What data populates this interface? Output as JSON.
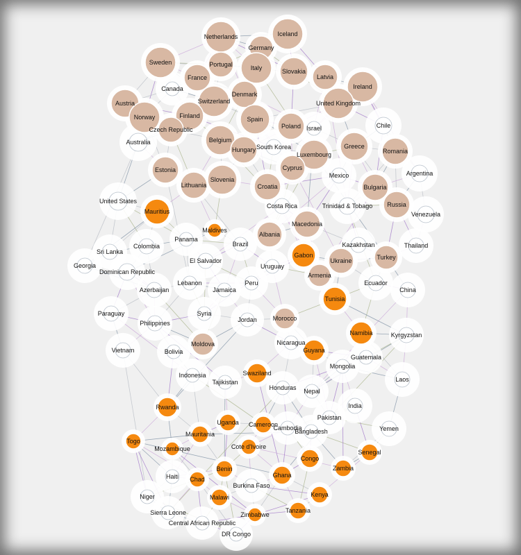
{
  "colors": {
    "background": "#f0f0f0",
    "node_tan": "#d8b8a3",
    "node_orange": "#f5890f",
    "node_white": "#ffffff",
    "halo": "#ffffff",
    "edge_palette": [
      "#9b6fc6",
      "#a8b38a",
      "#7c8fa3",
      "#c9a6d8",
      "#b7bcc4"
    ]
  },
  "nodes": [
    {
      "label": "Netherlands",
      "group": "tan"
    },
    {
      "label": "Iceland",
      "group": "tan"
    },
    {
      "label": "Germany",
      "group": "tan"
    },
    {
      "label": "Sweden",
      "group": "tan"
    },
    {
      "label": "Portugal",
      "group": "tan"
    },
    {
      "label": "Italy",
      "group": "tan"
    },
    {
      "label": "France",
      "group": "tan"
    },
    {
      "label": "Slovakia",
      "group": "tan"
    },
    {
      "label": "Latvia",
      "group": "tan"
    },
    {
      "label": "Ireland",
      "group": "tan"
    },
    {
      "label": "Canada",
      "group": "white"
    },
    {
      "label": "Denmark",
      "group": "tan"
    },
    {
      "label": "Austria",
      "group": "tan"
    },
    {
      "label": "Switzerland",
      "group": "tan"
    },
    {
      "label": "United Kingdom",
      "group": "tan"
    },
    {
      "label": "Norway",
      "group": "tan"
    },
    {
      "label": "Finland",
      "group": "tan"
    },
    {
      "label": "Spain",
      "group": "tan"
    },
    {
      "label": "Chile",
      "group": "white"
    },
    {
      "label": "Czech Republic",
      "group": "tan"
    },
    {
      "label": "Poland",
      "group": "tan"
    },
    {
      "label": "Israel",
      "group": "white"
    },
    {
      "label": "Australia",
      "group": "white"
    },
    {
      "label": "Belgium",
      "group": "tan"
    },
    {
      "label": "South Korea",
      "group": "white"
    },
    {
      "label": "Hungary",
      "group": "tan"
    },
    {
      "label": "Luxembourg",
      "group": "tan"
    },
    {
      "label": "Greece",
      "group": "tan"
    },
    {
      "label": "Romania",
      "group": "tan"
    },
    {
      "label": "Estonia",
      "group": "tan"
    },
    {
      "label": "Cyprus",
      "group": "tan"
    },
    {
      "label": "Argentina",
      "group": "white"
    },
    {
      "label": "Mexico",
      "group": "white"
    },
    {
      "label": "Slovenia",
      "group": "tan"
    },
    {
      "label": "Lithuania",
      "group": "tan"
    },
    {
      "label": "Croatia",
      "group": "tan"
    },
    {
      "label": "Bulgaria",
      "group": "tan"
    },
    {
      "label": "United States",
      "group": "white"
    },
    {
      "label": "Costa Rica",
      "group": "white"
    },
    {
      "label": "Trinidad & Tobago",
      "group": "white"
    },
    {
      "label": "Russia",
      "group": "tan"
    },
    {
      "label": "Venezuela",
      "group": "white"
    },
    {
      "label": "Mauritius",
      "group": "orange"
    },
    {
      "label": "Macedonia",
      "group": "tan"
    },
    {
      "label": "Maldives",
      "group": "orange"
    },
    {
      "label": "Albania",
      "group": "tan"
    },
    {
      "label": "Panama",
      "group": "white"
    },
    {
      "label": "Colombia",
      "group": "white"
    },
    {
      "label": "Brazil",
      "group": "white"
    },
    {
      "label": "Kazakhstan",
      "group": "white"
    },
    {
      "label": "Thailand",
      "group": "white"
    },
    {
      "label": "Sri Lanka",
      "group": "white"
    },
    {
      "label": "Gabon",
      "group": "orange"
    },
    {
      "label": "Turkey",
      "group": "tan"
    },
    {
      "label": "Ukraine",
      "group": "tan"
    },
    {
      "label": "El Salvador",
      "group": "white"
    },
    {
      "label": "Georgia",
      "group": "white"
    },
    {
      "label": "Dominican Republic",
      "group": "white"
    },
    {
      "label": "Uruguay",
      "group": "white"
    },
    {
      "label": "Armenia",
      "group": "tan"
    },
    {
      "label": "Lebanon",
      "group": "white"
    },
    {
      "label": "Azerbaijan",
      "group": "white"
    },
    {
      "label": "Peru",
      "group": "white"
    },
    {
      "label": "Ecuador",
      "group": "white"
    },
    {
      "label": "China",
      "group": "white"
    },
    {
      "label": "Jamaica",
      "group": "white"
    },
    {
      "label": "Tunisia",
      "group": "orange"
    },
    {
      "label": "Paraguay",
      "group": "white"
    },
    {
      "label": "Syria",
      "group": "white"
    },
    {
      "label": "Jordan",
      "group": "white"
    },
    {
      "label": "Morocco",
      "group": "tan"
    },
    {
      "label": "Philippines",
      "group": "white"
    },
    {
      "label": "Namibia",
      "group": "orange"
    },
    {
      "label": "Kyrgyzstan",
      "group": "white"
    },
    {
      "label": "Moldova",
      "group": "tan"
    },
    {
      "label": "Nicaragua",
      "group": "white"
    },
    {
      "label": "Guyana",
      "group": "orange"
    },
    {
      "label": "Vietnam",
      "group": "white"
    },
    {
      "label": "Bolivia",
      "group": "white"
    },
    {
      "label": "Guatemala",
      "group": "white"
    },
    {
      "label": "Mongolia",
      "group": "white"
    },
    {
      "label": "Indonesia",
      "group": "white"
    },
    {
      "label": "Swaziland",
      "group": "orange"
    },
    {
      "label": "Laos",
      "group": "white"
    },
    {
      "label": "Tajikistan",
      "group": "white"
    },
    {
      "label": "Honduras",
      "group": "white"
    },
    {
      "label": "Nepal",
      "group": "white"
    },
    {
      "label": "India",
      "group": "white"
    },
    {
      "label": "Rwanda",
      "group": "orange"
    },
    {
      "label": "Pakistan",
      "group": "white"
    },
    {
      "label": "Uganda",
      "group": "orange"
    },
    {
      "label": "Cameroon",
      "group": "orange"
    },
    {
      "label": "Yemen",
      "group": "white"
    },
    {
      "label": "Cambodia",
      "group": "white"
    },
    {
      "label": "Mauritania",
      "group": "orange"
    },
    {
      "label": "Bangladesh",
      "group": "white"
    },
    {
      "label": "Togo",
      "group": "orange"
    },
    {
      "label": "Mozambique",
      "group": "orange"
    },
    {
      "label": "Cote d'Ivoire",
      "group": "orange"
    },
    {
      "label": "Senegal",
      "group": "orange"
    },
    {
      "label": "Congo",
      "group": "orange"
    },
    {
      "label": "Zambia",
      "group": "orange"
    },
    {
      "label": "Haiti",
      "group": "white"
    },
    {
      "label": "Benin",
      "group": "orange"
    },
    {
      "label": "Chad",
      "group": "orange"
    },
    {
      "label": "Ghana",
      "group": "orange"
    },
    {
      "label": "Burkina Faso",
      "group": "white"
    },
    {
      "label": "Kenya",
      "group": "orange"
    },
    {
      "label": "Niger",
      "group": "white"
    },
    {
      "label": "Malawi",
      "group": "orange"
    },
    {
      "label": "Sierra Leone",
      "group": "white"
    },
    {
      "label": "Zimbabwe",
      "group": "orange"
    },
    {
      "label": "Tanzania",
      "group": "orange"
    },
    {
      "label": "Central African Republic",
      "group": "white"
    },
    {
      "label": "DR Congo",
      "group": "white"
    }
  ]
}
